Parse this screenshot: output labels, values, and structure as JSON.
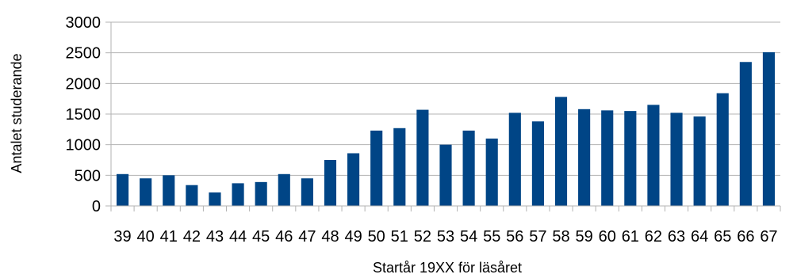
{
  "chart_data": {
    "type": "bar",
    "title": "",
    "xlabel": "Startår 19XX för läsåret",
    "ylabel": "Antalet studerande",
    "ylim": [
      0,
      3000
    ],
    "yticks": [
      "0",
      "500",
      "1000",
      "1500",
      "2000",
      "2500",
      "3000"
    ],
    "grid": true,
    "legend": "none",
    "bar_color": "#004586",
    "categories": [
      "39",
      "40",
      "41",
      "42",
      "43",
      "44",
      "45",
      "46",
      "47",
      "48",
      "49",
      "50",
      "51",
      "52",
      "53",
      "54",
      "55",
      "56",
      "57",
      "58",
      "59",
      "60",
      "61",
      "62",
      "63",
      "64",
      "65",
      "66",
      "67"
    ],
    "values": [
      520,
      450,
      500,
      340,
      220,
      370,
      390,
      520,
      450,
      750,
      860,
      1230,
      1270,
      1570,
      1000,
      1230,
      1100,
      1520,
      1380,
      1780,
      1580,
      1560,
      1550,
      1650,
      1520,
      1460,
      1840,
      2350,
      2510
    ]
  }
}
